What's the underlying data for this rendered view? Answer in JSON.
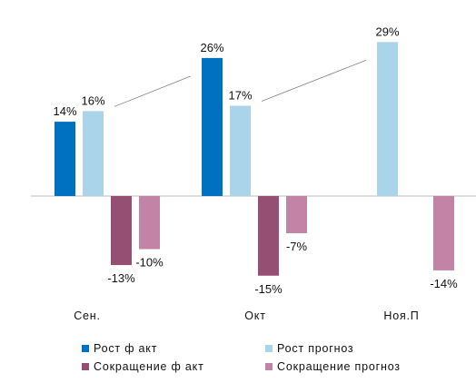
{
  "chart_data": {
    "type": "bar",
    "categories": [
      "Сен.",
      "Окт",
      "Ноя.П"
    ],
    "series": [
      {
        "name": "Рост ф акт",
        "color": "#0070c0",
        "values": [
          14,
          26,
          null
        ],
        "labels": [
          "14%",
          "26%",
          ""
        ]
      },
      {
        "name": "Рост прогноз",
        "color": "#a9d4ea",
        "values": [
          16,
          17,
          29
        ],
        "labels": [
          "16%",
          "17%",
          "29%"
        ]
      },
      {
        "name": "Сокращение ф акт",
        "color": "#954f72",
        "values": [
          -13,
          -15,
          null
        ],
        "labels": [
          "-13%",
          "-15%",
          ""
        ]
      },
      {
        "name": "Сокращение прогноз",
        "color": "#c283a6",
        "values": [
          -10,
          -7,
          -14
        ],
        "labels": [
          "-10%",
          "-7%",
          "-14%"
        ]
      }
    ],
    "ylim": [
      -16,
      30
    ],
    "grid": false,
    "legend_position": "bottom",
    "axis_color": "#bfbfbf",
    "connector_color": "#7f7f7f"
  }
}
